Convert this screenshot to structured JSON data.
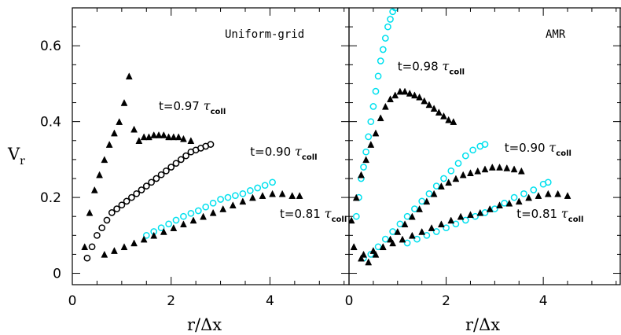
{
  "chart_data": [
    {
      "type": "scatter",
      "title": "Uniform-grid",
      "xlabel": "r/Δx",
      "ylabel": "V_r",
      "xlim": [
        0,
        5.6
      ],
      "ylim": [
        -0.03,
        0.7
      ],
      "xticks": [
        "0",
        "2",
        "4"
      ],
      "yticks": [
        "0",
        "0.2",
        "0.4",
        "0.6"
      ],
      "annotations": [
        {
          "t": "t=0.97",
          "sub": "coll",
          "x": 1.75,
          "y": 0.43
        },
        {
          "t": "t=0.90",
          "sub": "coll",
          "x": 3.6,
          "y": 0.31
        },
        {
          "t": "t=0.81",
          "sub": "coll",
          "x": 4.2,
          "y": 0.146
        }
      ],
      "series": [
        {
          "marker": "triangle",
          "color": "#000000",
          "label": "t=0.97",
          "x": [
            0.25,
            0.35,
            0.45,
            0.55,
            0.65,
            0.75,
            0.85,
            0.95,
            1.05,
            1.15,
            1.25,
            1.35,
            1.45,
            1.55,
            1.65,
            1.75,
            1.85,
            1.95,
            2.05,
            2.15,
            2.25,
            2.4
          ],
          "y": [
            0.07,
            0.16,
            0.22,
            0.26,
            0.3,
            0.34,
            0.37,
            0.4,
            0.45,
            0.52,
            0.38,
            0.35,
            0.36,
            0.36,
            0.365,
            0.365,
            0.365,
            0.36,
            0.36,
            0.36,
            0.355,
            0.35
          ]
        },
        {
          "marker": "circle",
          "color": "#000000",
          "label": "t=0.90",
          "x": [
            0.3,
            0.4,
            0.5,
            0.6,
            0.7,
            0.8,
            0.9,
            1.0,
            1.1,
            1.2,
            1.3,
            1.4,
            1.5,
            1.6,
            1.7,
            1.8,
            1.9,
            2.0,
            2.1,
            2.2,
            2.3,
            2.4,
            2.5,
            2.6,
            2.7,
            2.8
          ],
          "y": [
            0.04,
            0.07,
            0.1,
            0.12,
            0.14,
            0.16,
            0.17,
            0.18,
            0.19,
            0.2,
            0.21,
            0.22,
            0.23,
            0.24,
            0.25,
            0.26,
            0.27,
            0.28,
            0.29,
            0.3,
            0.31,
            0.32,
            0.325,
            0.33,
            0.335,
            0.34
          ]
        },
        {
          "marker": "circle",
          "color": "#00e0ee",
          "label": "t=0.81",
          "x": [
            1.5,
            1.65,
            1.8,
            1.95,
            2.1,
            2.25,
            2.4,
            2.55,
            2.7,
            2.85,
            3.0,
            3.15,
            3.3,
            3.45,
            3.6,
            3.75,
            3.9,
            4.05
          ],
          "y": [
            0.1,
            0.11,
            0.12,
            0.13,
            0.14,
            0.15,
            0.158,
            0.165,
            0.175,
            0.185,
            0.195,
            0.2,
            0.205,
            0.21,
            0.218,
            0.225,
            0.232,
            0.24
          ]
        },
        {
          "marker": "triangle",
          "color": "#000000",
          "label": "t=0.81",
          "x": [
            0.65,
            0.85,
            1.05,
            1.25,
            1.45,
            1.65,
            1.85,
            2.05,
            2.25,
            2.45,
            2.65,
            2.85,
            3.05,
            3.25,
            3.45,
            3.65,
            3.85,
            4.05,
            4.25,
            4.45,
            4.6
          ],
          "y": [
            0.05,
            0.06,
            0.07,
            0.08,
            0.09,
            0.1,
            0.11,
            0.12,
            0.13,
            0.14,
            0.15,
            0.16,
            0.17,
            0.18,
            0.19,
            0.2,
            0.205,
            0.21,
            0.21,
            0.205,
            0.205
          ]
        }
      ]
    },
    {
      "type": "scatter",
      "title": "AMR",
      "xlabel": "r/Δx",
      "ylabel": "",
      "xlim": [
        0,
        5.6
      ],
      "ylim": [
        -0.03,
        0.7
      ],
      "xticks": [
        "0",
        "2",
        "4"
      ],
      "annotations": [
        {
          "t": "t=0.98",
          "sub": "coll",
          "x": 1.0,
          "y": 0.535
        },
        {
          "t": "t=0.90",
          "sub": "coll",
          "x": 3.2,
          "y": 0.32
        },
        {
          "t": "t=0.81",
          "sub": "coll",
          "x": 3.45,
          "y": 0.146
        }
      ],
      "series": [
        {
          "marker": "circle",
          "color": "#00e0ee",
          "label": "t=0.98",
          "x": [
            0.15,
            0.2,
            0.25,
            0.3,
            0.35,
            0.4,
            0.45,
            0.5,
            0.55,
            0.6,
            0.65,
            0.7,
            0.75,
            0.8,
            0.85,
            0.9,
            0.95
          ],
          "y": [
            0.15,
            0.2,
            0.25,
            0.28,
            0.32,
            0.36,
            0.4,
            0.44,
            0.48,
            0.52,
            0.56,
            0.59,
            0.62,
            0.65,
            0.67,
            0.69,
            0.7
          ]
        },
        {
          "marker": "triangle",
          "color": "#000000",
          "label": "t=0.98",
          "x": [
            0.05,
            0.15,
            0.25,
            0.35,
            0.45,
            0.55,
            0.65,
            0.75,
            0.85,
            0.95,
            1.05,
            1.15,
            1.25,
            1.35,
            1.45,
            1.55,
            1.65,
            1.75,
            1.85,
            1.95,
            2.05,
            2.15
          ],
          "y": [
            0.14,
            0.2,
            0.26,
            0.3,
            0.34,
            0.37,
            0.41,
            0.44,
            0.46,
            0.47,
            0.48,
            0.48,
            0.475,
            0.47,
            0.465,
            0.455,
            0.445,
            0.435,
            0.425,
            0.415,
            0.405,
            0.4
          ]
        },
        {
          "marker": "circle",
          "color": "#00e0ee",
          "label": "t=0.90",
          "x": [
            0.3,
            0.45,
            0.6,
            0.75,
            0.9,
            1.05,
            1.2,
            1.35,
            1.5,
            1.65,
            1.8,
            1.95,
            2.1,
            2.25,
            2.4,
            2.55,
            2.7,
            2.8
          ],
          "y": [
            0.04,
            0.05,
            0.07,
            0.09,
            0.11,
            0.13,
            0.15,
            0.17,
            0.19,
            0.21,
            0.23,
            0.25,
            0.27,
            0.29,
            0.31,
            0.325,
            0.335,
            0.34
          ]
        },
        {
          "marker": "triangle",
          "color": "#000000",
          "label": "t=0.90",
          "x": [
            0.1,
            0.25,
            0.4,
            0.55,
            0.7,
            0.85,
            1.0,
            1.15,
            1.3,
            1.45,
            1.6,
            1.75,
            1.9,
            2.05,
            2.2,
            2.35,
            2.5,
            2.65,
            2.8,
            2.95,
            3.1,
            3.25,
            3.4,
            3.55
          ],
          "y": [
            0.07,
            0.04,
            0.03,
            0.05,
            0.07,
            0.09,
            0.11,
            0.13,
            0.15,
            0.17,
            0.19,
            0.21,
            0.23,
            0.24,
            0.25,
            0.26,
            0.265,
            0.27,
            0.275,
            0.28,
            0.28,
            0.278,
            0.275,
            0.27
          ]
        },
        {
          "marker": "circle",
          "color": "#00e0ee",
          "label": "t=0.81",
          "x": [
            1.2,
            1.4,
            1.6,
            1.8,
            2.0,
            2.2,
            2.4,
            2.6,
            2.8,
            3.0,
            3.2,
            3.4,
            3.6,
            3.8,
            4.0,
            4.1
          ],
          "y": [
            0.08,
            0.09,
            0.1,
            0.11,
            0.12,
            0.13,
            0.14,
            0.15,
            0.16,
            0.17,
            0.185,
            0.2,
            0.21,
            0.22,
            0.235,
            0.24
          ]
        },
        {
          "marker": "triangle",
          "color": "#000000",
          "label": "t=0.81",
          "x": [
            0.1,
            0.3,
            0.5,
            0.7,
            0.9,
            1.1,
            1.3,
            1.5,
            1.7,
            1.9,
            2.1,
            2.3,
            2.5,
            2.7,
            2.9,
            3.1,
            3.3,
            3.5,
            3.7,
            3.9,
            4.1,
            4.3,
            4.5
          ],
          "y": [
            0.07,
            0.05,
            0.06,
            0.07,
            0.08,
            0.09,
            0.1,
            0.11,
            0.12,
            0.13,
            0.14,
            0.15,
            0.155,
            0.16,
            0.17,
            0.18,
            0.185,
            0.19,
            0.2,
            0.205,
            0.21,
            0.21,
            0.205
          ]
        }
      ]
    }
  ]
}
